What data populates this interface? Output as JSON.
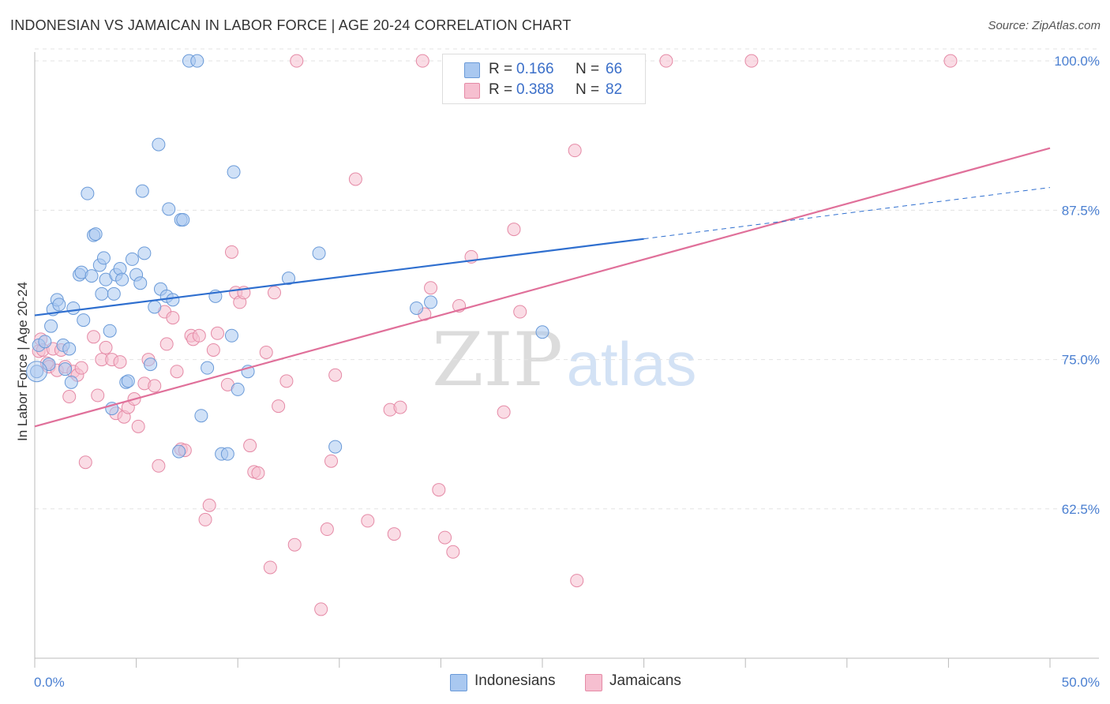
{
  "header": {
    "title": "INDONESIAN VS JAMAICAN IN LABOR FORCE | AGE 20-24 CORRELATION CHART",
    "source": "Source: ZipAtlas.com"
  },
  "watermark": {
    "zip": "ZIP",
    "atlas": "atlas"
  },
  "legend_top": {
    "indonesians": {
      "r_label": "R =",
      "r_value": "0.166",
      "n_label": "N =",
      "n_value": "66"
    },
    "jamaicans": {
      "r_label": "R =",
      "r_value": "0.388",
      "n_label": "N =",
      "n_value": "82"
    }
  },
  "legend_bottom": {
    "indonesians": "Indonesians",
    "jamaicans": "Jamaicans"
  },
  "colors": {
    "blue_fill": "#a9c8f0",
    "blue_stroke": "#6a9ad8",
    "blue_line": "#2f6fcf",
    "pink_fill": "#f6bfd0",
    "pink_stroke": "#e58aa6",
    "pink_line": "#e0709a",
    "grid": "#e3e3e3",
    "tick_text": "#4a7fd1"
  },
  "chart_data": {
    "type": "scatter",
    "title": "INDONESIAN VS JAMAICAN IN LABOR FORCE | AGE 20-24 CORRELATION CHART",
    "xlabel": "",
    "ylabel": "In Labor Force | Age 20-24",
    "xlim": [
      0,
      50
    ],
    "ylim": [
      50,
      101
    ],
    "x_tick_labels": [
      "0.0%",
      "50.0%"
    ],
    "y_ticks": [
      62.5,
      75.0,
      87.5,
      100.0
    ],
    "y_tick_labels": [
      "62.5%",
      "75.0%",
      "87.5%",
      "100.0%"
    ],
    "grid": true,
    "legend": "top-center",
    "series": [
      {
        "name": "Indonesians",
        "color": "#a9c8f0",
        "trend": {
          "x0": 0,
          "y0": 78.7,
          "x1": 30,
          "y1": 85.1,
          "dash_to_x": 50,
          "dash_to_y": 89.4
        },
        "points": [
          [
            0.1,
            74.0
          ],
          [
            0.2,
            76.2
          ],
          [
            0.5,
            76.5
          ],
          [
            0.7,
            74.6
          ],
          [
            0.8,
            77.8
          ],
          [
            0.9,
            79.2
          ],
          [
            1.1,
            80.0
          ],
          [
            1.2,
            79.6
          ],
          [
            1.4,
            76.2
          ],
          [
            1.5,
            74.2
          ],
          [
            1.7,
            75.9
          ],
          [
            1.8,
            73.1
          ],
          [
            1.9,
            79.3
          ],
          [
            2.4,
            78.3
          ],
          [
            2.2,
            82.1
          ],
          [
            2.3,
            82.3
          ],
          [
            2.6,
            88.9
          ],
          [
            2.8,
            82.0
          ],
          [
            2.9,
            85.4
          ],
          [
            3.0,
            85.5
          ],
          [
            3.2,
            82.9
          ],
          [
            3.3,
            80.5
          ],
          [
            3.4,
            83.5
          ],
          [
            3.5,
            81.7
          ],
          [
            3.7,
            77.4
          ],
          [
            3.9,
            80.5
          ],
          [
            4.0,
            82.1
          ],
          [
            4.2,
            82.6
          ],
          [
            4.3,
            81.7
          ],
          [
            4.5,
            73.1
          ],
          [
            4.6,
            73.2
          ],
          [
            4.8,
            83.4
          ],
          [
            5.0,
            82.1
          ],
          [
            5.2,
            81.4
          ],
          [
            5.3,
            89.1
          ],
          [
            5.4,
            83.9
          ],
          [
            5.7,
            74.6
          ],
          [
            5.9,
            79.4
          ],
          [
            6.1,
            93.0
          ],
          [
            6.2,
            80.9
          ],
          [
            6.5,
            80.3
          ],
          [
            6.6,
            87.6
          ],
          [
            6.8,
            80.0
          ],
          [
            7.1,
            67.3
          ],
          [
            7.2,
            86.7
          ],
          [
            7.3,
            86.7
          ],
          [
            7.6,
            100.0
          ],
          [
            8.0,
            100.0
          ],
          [
            8.2,
            70.3
          ],
          [
            8.5,
            74.3
          ],
          [
            8.9,
            80.3
          ],
          [
            9.2,
            67.1
          ],
          [
            9.5,
            67.1
          ],
          [
            9.7,
            77.0
          ],
          [
            9.8,
            90.7
          ],
          [
            10.0,
            72.5
          ],
          [
            10.5,
            74.0
          ],
          [
            12.5,
            81.8
          ],
          [
            14.0,
            83.9
          ],
          [
            14.8,
            67.7
          ],
          [
            18.8,
            79.3
          ],
          [
            19.5,
            79.8
          ],
          [
            21.8,
            100.0
          ],
          [
            25.0,
            77.3
          ],
          [
            28.5,
            100.0
          ],
          [
            3.8,
            70.9
          ]
        ]
      },
      {
        "name": "Jamaicans",
        "color": "#f6bfd0",
        "trend": {
          "x0": 0,
          "y0": 69.4,
          "x1": 50,
          "y1": 92.7
        },
        "points": [
          [
            0.2,
            75.7
          ],
          [
            0.3,
            76.7
          ],
          [
            0.4,
            75.8
          ],
          [
            0.6,
            74.7
          ],
          [
            0.7,
            74.4
          ],
          [
            0.9,
            75.9
          ],
          [
            1.1,
            74.1
          ],
          [
            1.3,
            75.8
          ],
          [
            1.5,
            74.4
          ],
          [
            1.7,
            71.9
          ],
          [
            1.9,
            74.0
          ],
          [
            2.1,
            73.7
          ],
          [
            2.3,
            74.3
          ],
          [
            2.5,
            66.4
          ],
          [
            2.9,
            76.9
          ],
          [
            3.1,
            72.0
          ],
          [
            3.3,
            75.0
          ],
          [
            3.5,
            76.0
          ],
          [
            3.8,
            75.0
          ],
          [
            4.0,
            70.5
          ],
          [
            4.2,
            74.8
          ],
          [
            4.4,
            70.2
          ],
          [
            4.6,
            71.0
          ],
          [
            4.9,
            71.7
          ],
          [
            5.1,
            69.4
          ],
          [
            5.4,
            73.0
          ],
          [
            5.6,
            75.0
          ],
          [
            5.9,
            72.8
          ],
          [
            6.1,
            66.1
          ],
          [
            6.4,
            79.0
          ],
          [
            6.5,
            76.3
          ],
          [
            6.8,
            78.5
          ],
          [
            7.0,
            74.0
          ],
          [
            7.2,
            67.5
          ],
          [
            7.4,
            67.4
          ],
          [
            7.7,
            77.0
          ],
          [
            7.8,
            76.7
          ],
          [
            8.1,
            77.0
          ],
          [
            8.4,
            61.6
          ],
          [
            8.6,
            62.8
          ],
          [
            8.8,
            75.8
          ],
          [
            9.0,
            77.2
          ],
          [
            9.5,
            72.9
          ],
          [
            9.7,
            84.0
          ],
          [
            9.9,
            80.6
          ],
          [
            10.1,
            79.8
          ],
          [
            10.3,
            80.6
          ],
          [
            10.6,
            67.8
          ],
          [
            10.8,
            65.6
          ],
          [
            11.0,
            65.5
          ],
          [
            11.4,
            75.6
          ],
          [
            11.6,
            57.6
          ],
          [
            11.8,
            80.6
          ],
          [
            12.0,
            71.1
          ],
          [
            12.4,
            73.2
          ],
          [
            12.8,
            59.5
          ],
          [
            12.9,
            100.0
          ],
          [
            14.1,
            54.1
          ],
          [
            14.4,
            60.8
          ],
          [
            14.6,
            66.5
          ],
          [
            14.8,
            73.7
          ],
          [
            15.8,
            90.1
          ],
          [
            16.4,
            61.5
          ],
          [
            17.5,
            70.8
          ],
          [
            17.7,
            60.4
          ],
          [
            18.0,
            71.0
          ],
          [
            19.1,
            100.0
          ],
          [
            19.2,
            78.8
          ],
          [
            19.5,
            81.0
          ],
          [
            19.9,
            64.1
          ],
          [
            20.2,
            60.1
          ],
          [
            20.6,
            58.9
          ],
          [
            21.5,
            83.6
          ],
          [
            23.1,
            70.6
          ],
          [
            23.6,
            85.9
          ],
          [
            23.9,
            79.0
          ],
          [
            26.6,
            92.5
          ],
          [
            26.7,
            56.5
          ],
          [
            31.1,
            100.0
          ],
          [
            35.3,
            100.0
          ],
          [
            45.1,
            100.0
          ],
          [
            20.9,
            79.5
          ]
        ]
      }
    ]
  }
}
